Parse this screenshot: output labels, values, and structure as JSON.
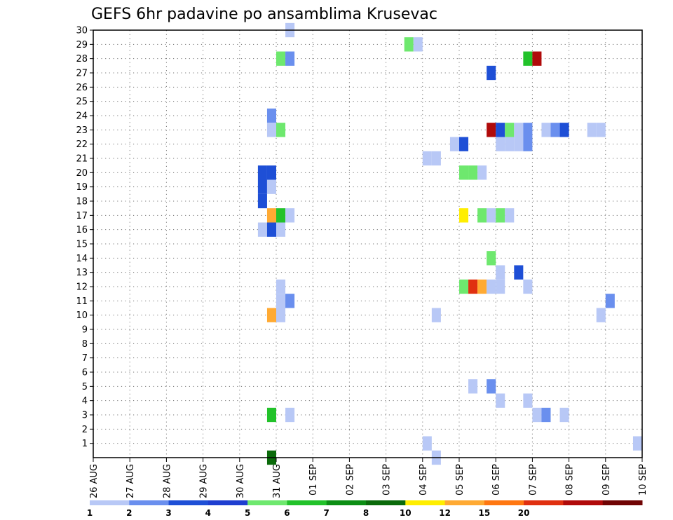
{
  "chart_data": {
    "type": "heatmap",
    "title": "GEFS 6hr padavine po ansamblima Krusevac",
    "x_tick_labels": [
      "26 AUG",
      "27 AUG",
      "28 AUG",
      "29 AUG",
      "30 AUG",
      "31 AUG",
      "01 SEP",
      "02 SEP",
      "03 SEP",
      "04 SEP",
      "05 SEP",
      "06 SEP",
      "07 SEP",
      "08 SEP",
      "09 SEP",
      "10 SEP"
    ],
    "x_unit": "6-hour steps from 26 AUG 00Z (4 steps per day)",
    "y_tick_labels": [
      "1",
      "2",
      "3",
      "4",
      "5",
      "6",
      "7",
      "8",
      "9",
      "10",
      "11",
      "12",
      "13",
      "14",
      "15",
      "16",
      "17",
      "18",
      "19",
      "20",
      "21",
      "22",
      "23",
      "24",
      "25",
      "26",
      "27",
      "28",
      "29",
      "30"
    ],
    "ylim": [
      0,
      30
    ],
    "xlim": [
      0,
      60
    ],
    "grid": true,
    "colorbar": {
      "labels": [
        "1",
        "2",
        "3",
        "4",
        "5",
        "6",
        "7",
        "8",
        "10",
        "12",
        "15",
        "20"
      ],
      "colors": [
        "#b8c8f6",
        "#6a8fee",
        "#1e4fd6",
        "#1e3ed0",
        "#6ee86e",
        "#22c22a",
        "#0c8e14",
        "#0a6a0a",
        "#ffee00",
        "#ffaa33",
        "#ff7711",
        "#e03010",
        "#b00a0a",
        "#700404"
      ]
    },
    "cells": [
      {
        "member": 30,
        "step": 21,
        "color": "#b8c8f6"
      },
      {
        "member": 29,
        "step": 34,
        "color": "#6ee86e"
      },
      {
        "member": 29,
        "step": 35,
        "color": "#b8c8f6"
      },
      {
        "member": 28,
        "step": 20,
        "color": "#6ee86e"
      },
      {
        "member": 28,
        "step": 21,
        "color": "#6a8fee"
      },
      {
        "member": 28,
        "step": 47,
        "color": "#22c22a"
      },
      {
        "member": 28,
        "step": 48,
        "color": "#b00a0a"
      },
      {
        "member": 27,
        "step": 43,
        "color": "#1e4fd6"
      },
      {
        "member": 24,
        "step": 19,
        "color": "#6a8fee"
      },
      {
        "member": 23,
        "step": 19,
        "color": "#b8c8f6"
      },
      {
        "member": 23,
        "step": 20,
        "color": "#6ee86e"
      },
      {
        "member": 23,
        "step": 43,
        "color": "#b00a0a"
      },
      {
        "member": 23,
        "step": 44,
        "color": "#1e4fd6"
      },
      {
        "member": 23,
        "step": 45,
        "color": "#6ee86e"
      },
      {
        "member": 23,
        "step": 46,
        "color": "#b8c8f6"
      },
      {
        "member": 23,
        "step": 47,
        "color": "#6a8fee"
      },
      {
        "member": 23,
        "step": 49,
        "color": "#b8c8f6"
      },
      {
        "member": 23,
        "step": 50,
        "color": "#6a8fee"
      },
      {
        "member": 23,
        "step": 51,
        "color": "#1e4fd6"
      },
      {
        "member": 23,
        "step": 54,
        "color": "#b8c8f6"
      },
      {
        "member": 23,
        "step": 55,
        "color": "#b8c8f6"
      },
      {
        "member": 22,
        "step": 39,
        "color": "#b8c8f6"
      },
      {
        "member": 22,
        "step": 40,
        "color": "#1e4fd6"
      },
      {
        "member": 22,
        "step": 44,
        "color": "#b8c8f6"
      },
      {
        "member": 22,
        "step": 45,
        "color": "#b8c8f6"
      },
      {
        "member": 22,
        "step": 46,
        "color": "#b8c8f6"
      },
      {
        "member": 22,
        "step": 47,
        "color": "#6a8fee"
      },
      {
        "member": 21,
        "step": 36,
        "color": "#b8c8f6"
      },
      {
        "member": 21,
        "step": 37,
        "color": "#b8c8f6"
      },
      {
        "member": 20,
        "step": 18,
        "color": "#1e4fd6"
      },
      {
        "member": 20,
        "step": 19,
        "color": "#1e4fd6"
      },
      {
        "member": 20,
        "step": 40,
        "color": "#6ee86e"
      },
      {
        "member": 20,
        "step": 41,
        "color": "#6ee86e"
      },
      {
        "member": 20,
        "step": 42,
        "color": "#b8c8f6"
      },
      {
        "member": 19,
        "step": 18,
        "color": "#1e4fd6"
      },
      {
        "member": 19,
        "step": 19,
        "color": "#b8c8f6"
      },
      {
        "member": 18,
        "step": 18,
        "color": "#1e4fd6"
      },
      {
        "member": 17,
        "step": 19,
        "color": "#ffaa33"
      },
      {
        "member": 17,
        "step": 20,
        "color": "#22c22a"
      },
      {
        "member": 17,
        "step": 21,
        "color": "#b8c8f6"
      },
      {
        "member": 17,
        "step": 40,
        "color": "#ffee00"
      },
      {
        "member": 17,
        "step": 42,
        "color": "#6ee86e"
      },
      {
        "member": 17,
        "step": 43,
        "color": "#b8c8f6"
      },
      {
        "member": 17,
        "step": 44,
        "color": "#6ee86e"
      },
      {
        "member": 17,
        "step": 45,
        "color": "#b8c8f6"
      },
      {
        "member": 16,
        "step": 18,
        "color": "#b8c8f6"
      },
      {
        "member": 16,
        "step": 19,
        "color": "#1e4fd6"
      },
      {
        "member": 16,
        "step": 20,
        "color": "#b8c8f6"
      },
      {
        "member": 14,
        "step": 43,
        "color": "#6ee86e"
      },
      {
        "member": 13,
        "step": 44,
        "color": "#b8c8f6"
      },
      {
        "member": 13,
        "step": 46,
        "color": "#1e4fd6"
      },
      {
        "member": 12,
        "step": 20,
        "color": "#b8c8f6"
      },
      {
        "member": 12,
        "step": 40,
        "color": "#6ee86e"
      },
      {
        "member": 12,
        "step": 41,
        "color": "#e03010"
      },
      {
        "member": 12,
        "step": 42,
        "color": "#ffaa33"
      },
      {
        "member": 12,
        "step": 43,
        "color": "#b8c8f6"
      },
      {
        "member": 12,
        "step": 44,
        "color": "#b8c8f6"
      },
      {
        "member": 12,
        "step": 47,
        "color": "#b8c8f6"
      },
      {
        "member": 11,
        "step": 20,
        "color": "#b8c8f6"
      },
      {
        "member": 11,
        "step": 21,
        "color": "#6a8fee"
      },
      {
        "member": 11,
        "step": 56,
        "color": "#6a8fee"
      },
      {
        "member": 10,
        "step": 19,
        "color": "#ffaa33"
      },
      {
        "member": 10,
        "step": 20,
        "color": "#b8c8f6"
      },
      {
        "member": 10,
        "step": 37,
        "color": "#b8c8f6"
      },
      {
        "member": 10,
        "step": 55,
        "color": "#b8c8f6"
      },
      {
        "member": 5,
        "step": 41,
        "color": "#b8c8f6"
      },
      {
        "member": 5,
        "step": 43,
        "color": "#6a8fee"
      },
      {
        "member": 4,
        "step": 44,
        "color": "#b8c8f6"
      },
      {
        "member": 4,
        "step": 47,
        "color": "#b8c8f6"
      },
      {
        "member": 3,
        "step": 19,
        "color": "#22c22a"
      },
      {
        "member": 3,
        "step": 21,
        "color": "#b8c8f6"
      },
      {
        "member": 3,
        "step": 48,
        "color": "#b8c8f6"
      },
      {
        "member": 3,
        "step": 49,
        "color": "#6a8fee"
      },
      {
        "member": 3,
        "step": 51,
        "color": "#b8c8f6"
      },
      {
        "member": 1,
        "step": 36,
        "color": "#b8c8f6"
      },
      {
        "member": 1,
        "step": 59,
        "color": "#b8c8f6"
      },
      {
        "member": 0,
        "step": 19,
        "color": "#0a6a0a"
      },
      {
        "member": 0,
        "step": 37,
        "color": "#b8c8f6"
      }
    ]
  }
}
